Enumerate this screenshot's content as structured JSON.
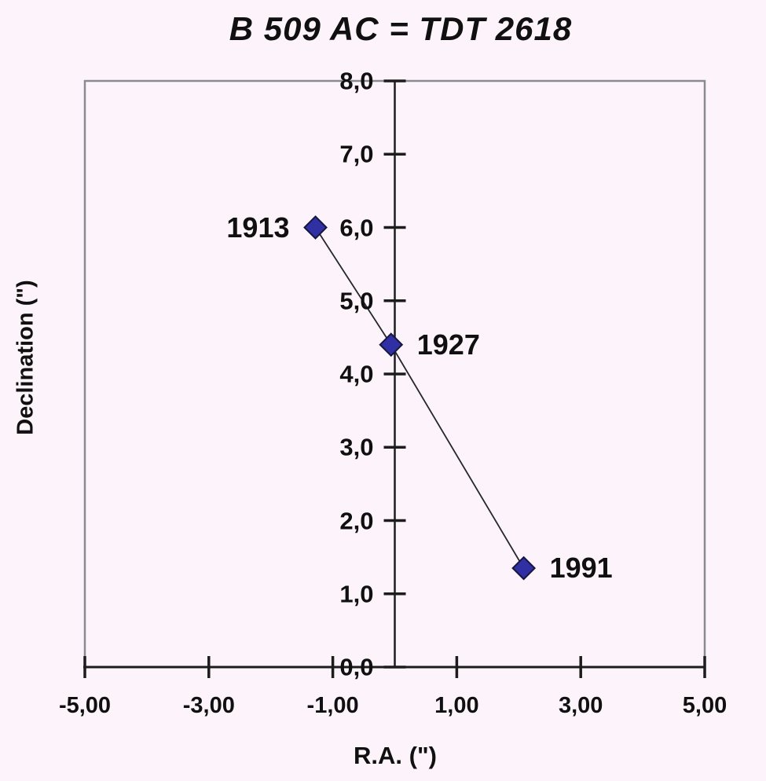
{
  "chart_data": {
    "type": "line",
    "title": "B 509 AC = TDT 2618",
    "xlabel": "R.A. (\")",
    "ylabel": "Declination (\")",
    "xlim": [
      -5,
      5
    ],
    "ylim": [
      0,
      8
    ],
    "decimal_separator": ",",
    "grid": false,
    "legend": false,
    "x_ticks": [
      {
        "value": -5,
        "label": "-5,00"
      },
      {
        "value": -3,
        "label": "-3,00"
      },
      {
        "value": -1,
        "label": "-1,00"
      },
      {
        "value": 1,
        "label": "1,00"
      },
      {
        "value": 3,
        "label": "3,00"
      },
      {
        "value": 5,
        "label": "5,00"
      }
    ],
    "y_ticks": [
      {
        "value": 0,
        "label": "0,0"
      },
      {
        "value": 1,
        "label": "1,0"
      },
      {
        "value": 2,
        "label": "2,0"
      },
      {
        "value": 3,
        "label": "3,0"
      },
      {
        "value": 4,
        "label": "4,0"
      },
      {
        "value": 5,
        "label": "5,0"
      },
      {
        "value": 6,
        "label": "6,0"
      },
      {
        "value": 7,
        "label": "7,0"
      },
      {
        "value": 8,
        "label": "8,0"
      }
    ],
    "points": [
      {
        "year": "1913",
        "x": -1.28,
        "y": 6.0,
        "label_side": "left"
      },
      {
        "year": "1927",
        "x": -0.06,
        "y": 4.4,
        "label_side": "right"
      },
      {
        "year": "1991",
        "x": 2.08,
        "y": 1.35,
        "label_side": "right"
      }
    ],
    "marker": "diamond",
    "colors": {
      "background": "#FCF4FA",
      "plot_border": "#8A8A92",
      "axis": "#1C1C1C",
      "series_line": "#26262E",
      "marker_fill": "#3030A4",
      "marker_stroke": "#16163E",
      "text": "#101010"
    }
  }
}
